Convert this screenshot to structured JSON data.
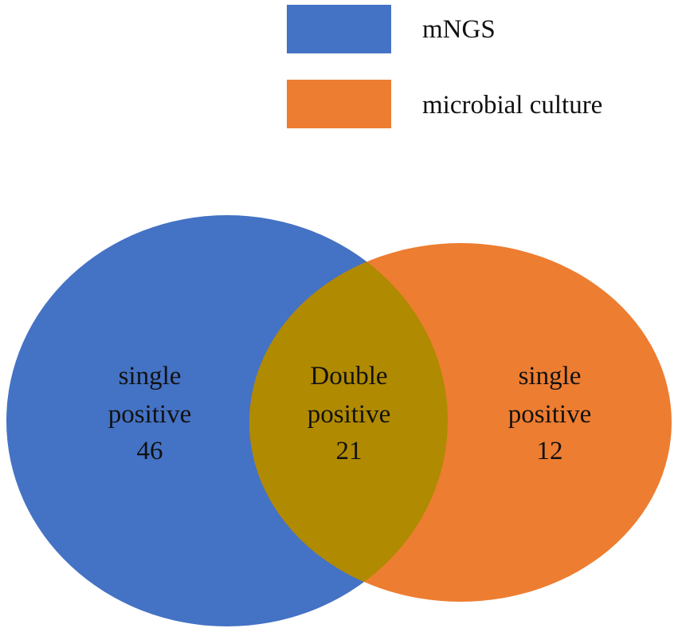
{
  "legend": [
    {
      "label": "mNGS",
      "color": "#4472C4"
    },
    {
      "label": "microbial culture",
      "color": "#ED7D31"
    }
  ],
  "regions": {
    "left": {
      "lines": [
        "single",
        "positive",
        "46"
      ]
    },
    "overlap": {
      "lines": [
        "Double",
        "positive",
        "21"
      ],
      "color": "#B08A00"
    },
    "right": {
      "lines": [
        "single",
        "positive",
        "12"
      ]
    }
  },
  "venn_data": {
    "sets": [
      "mNGS",
      "microbial culture"
    ],
    "mNGS_only": 46,
    "both": 21,
    "culture_only": 12
  }
}
